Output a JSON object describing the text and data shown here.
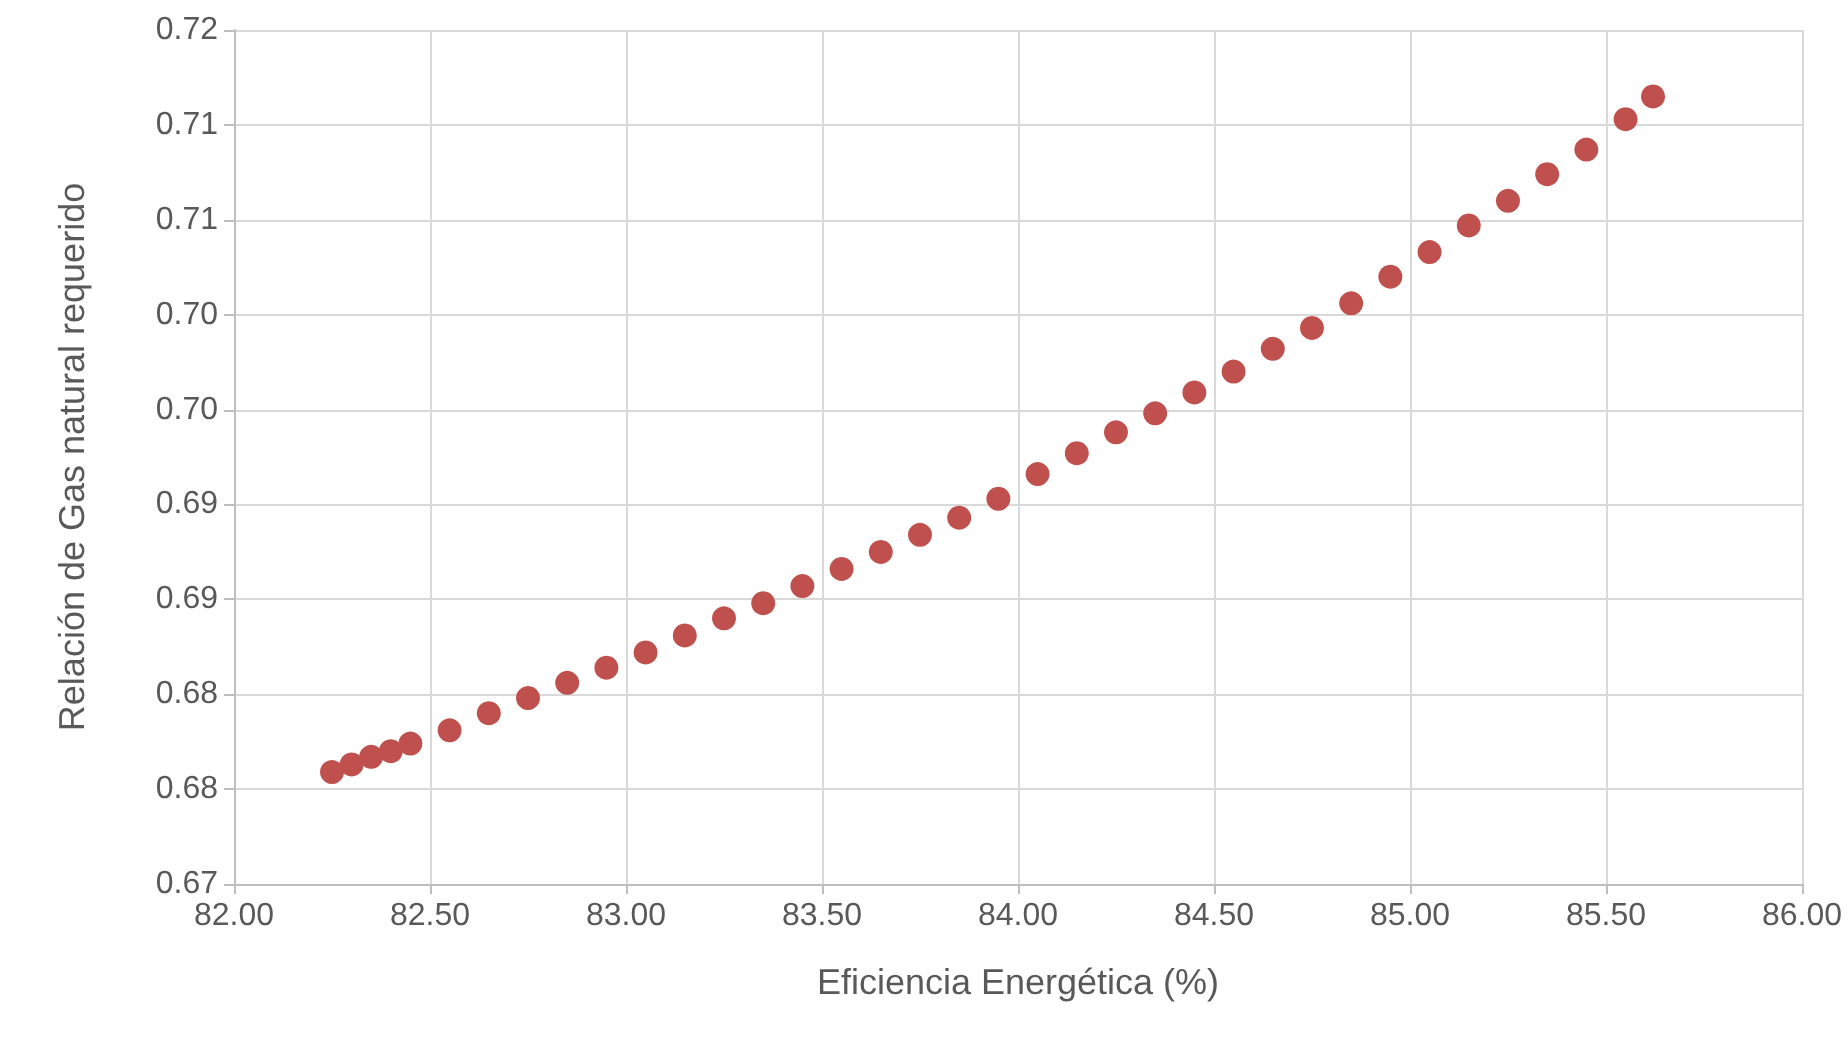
{
  "chart_data": {
    "type": "scatter",
    "xlabel": "Eficiencia Energética (%)",
    "ylabel": "Relación de Gas natural requerido",
    "x": [
      82.25,
      82.3,
      82.35,
      82.4,
      82.45,
      82.55,
      82.65,
      82.75,
      82.85,
      82.95,
      83.05,
      83.15,
      83.25,
      83.35,
      83.45,
      83.55,
      83.65,
      83.75,
      83.85,
      83.95,
      84.05,
      84.15,
      84.25,
      84.35,
      84.45,
      84.55,
      84.65,
      84.75,
      84.85,
      84.95,
      85.05,
      85.15,
      85.25,
      85.35,
      85.45,
      85.55,
      85.62
    ],
    "series": [
      {
        "color": "#c0504d",
        "values": [
          0.6799,
          0.6803,
          0.6807,
          0.681,
          0.6814,
          0.6821,
          0.683,
          0.6838,
          0.6846,
          0.6854,
          0.6862,
          0.6871,
          0.688,
          0.6888,
          0.6897,
          0.6906,
          0.6915,
          0.6924,
          0.6933,
          0.6943,
          0.6956,
          0.6967,
          0.6978,
          0.6988,
          0.6999,
          0.701,
          0.7022,
          0.7033,
          0.7046,
          0.706,
          0.7073,
          0.7087,
          0.71,
          0.7114,
          0.7127,
          0.7143,
          0.7155
        ]
      }
    ],
    "xlim": [
      82,
      86
    ],
    "xticks": [
      {
        "value": 82,
        "label": "82.00"
      },
      {
        "value": 82.5,
        "label": "82.50"
      },
      {
        "value": 83,
        "label": "83.00"
      },
      {
        "value": 83.5,
        "label": "83.50"
      },
      {
        "value": 84,
        "label": "84.00"
      },
      {
        "value": 84.5,
        "label": "84.50"
      },
      {
        "value": 85,
        "label": "85.00"
      },
      {
        "value": 85.5,
        "label": "85.50"
      },
      {
        "value": 86,
        "label": "86.00"
      }
    ],
    "ylim": [
      0.674,
      0.719
    ],
    "yticks": [
      {
        "value": 0.674,
        "label": "0.67"
      },
      {
        "value": 0.679,
        "label": "0.68"
      },
      {
        "value": 0.684,
        "label": "0.68"
      },
      {
        "value": 0.689,
        "label": "0.69"
      },
      {
        "value": 0.694,
        "label": "0.69"
      },
      {
        "value": 0.699,
        "label": "0.70"
      },
      {
        "value": 0.704,
        "label": "0.70"
      },
      {
        "value": 0.709,
        "label": "0.71"
      },
      {
        "value": 0.714,
        "label": "0.71"
      },
      {
        "value": 0.719,
        "label": "0.72"
      }
    ],
    "grid": true,
    "marker": "circle"
  }
}
